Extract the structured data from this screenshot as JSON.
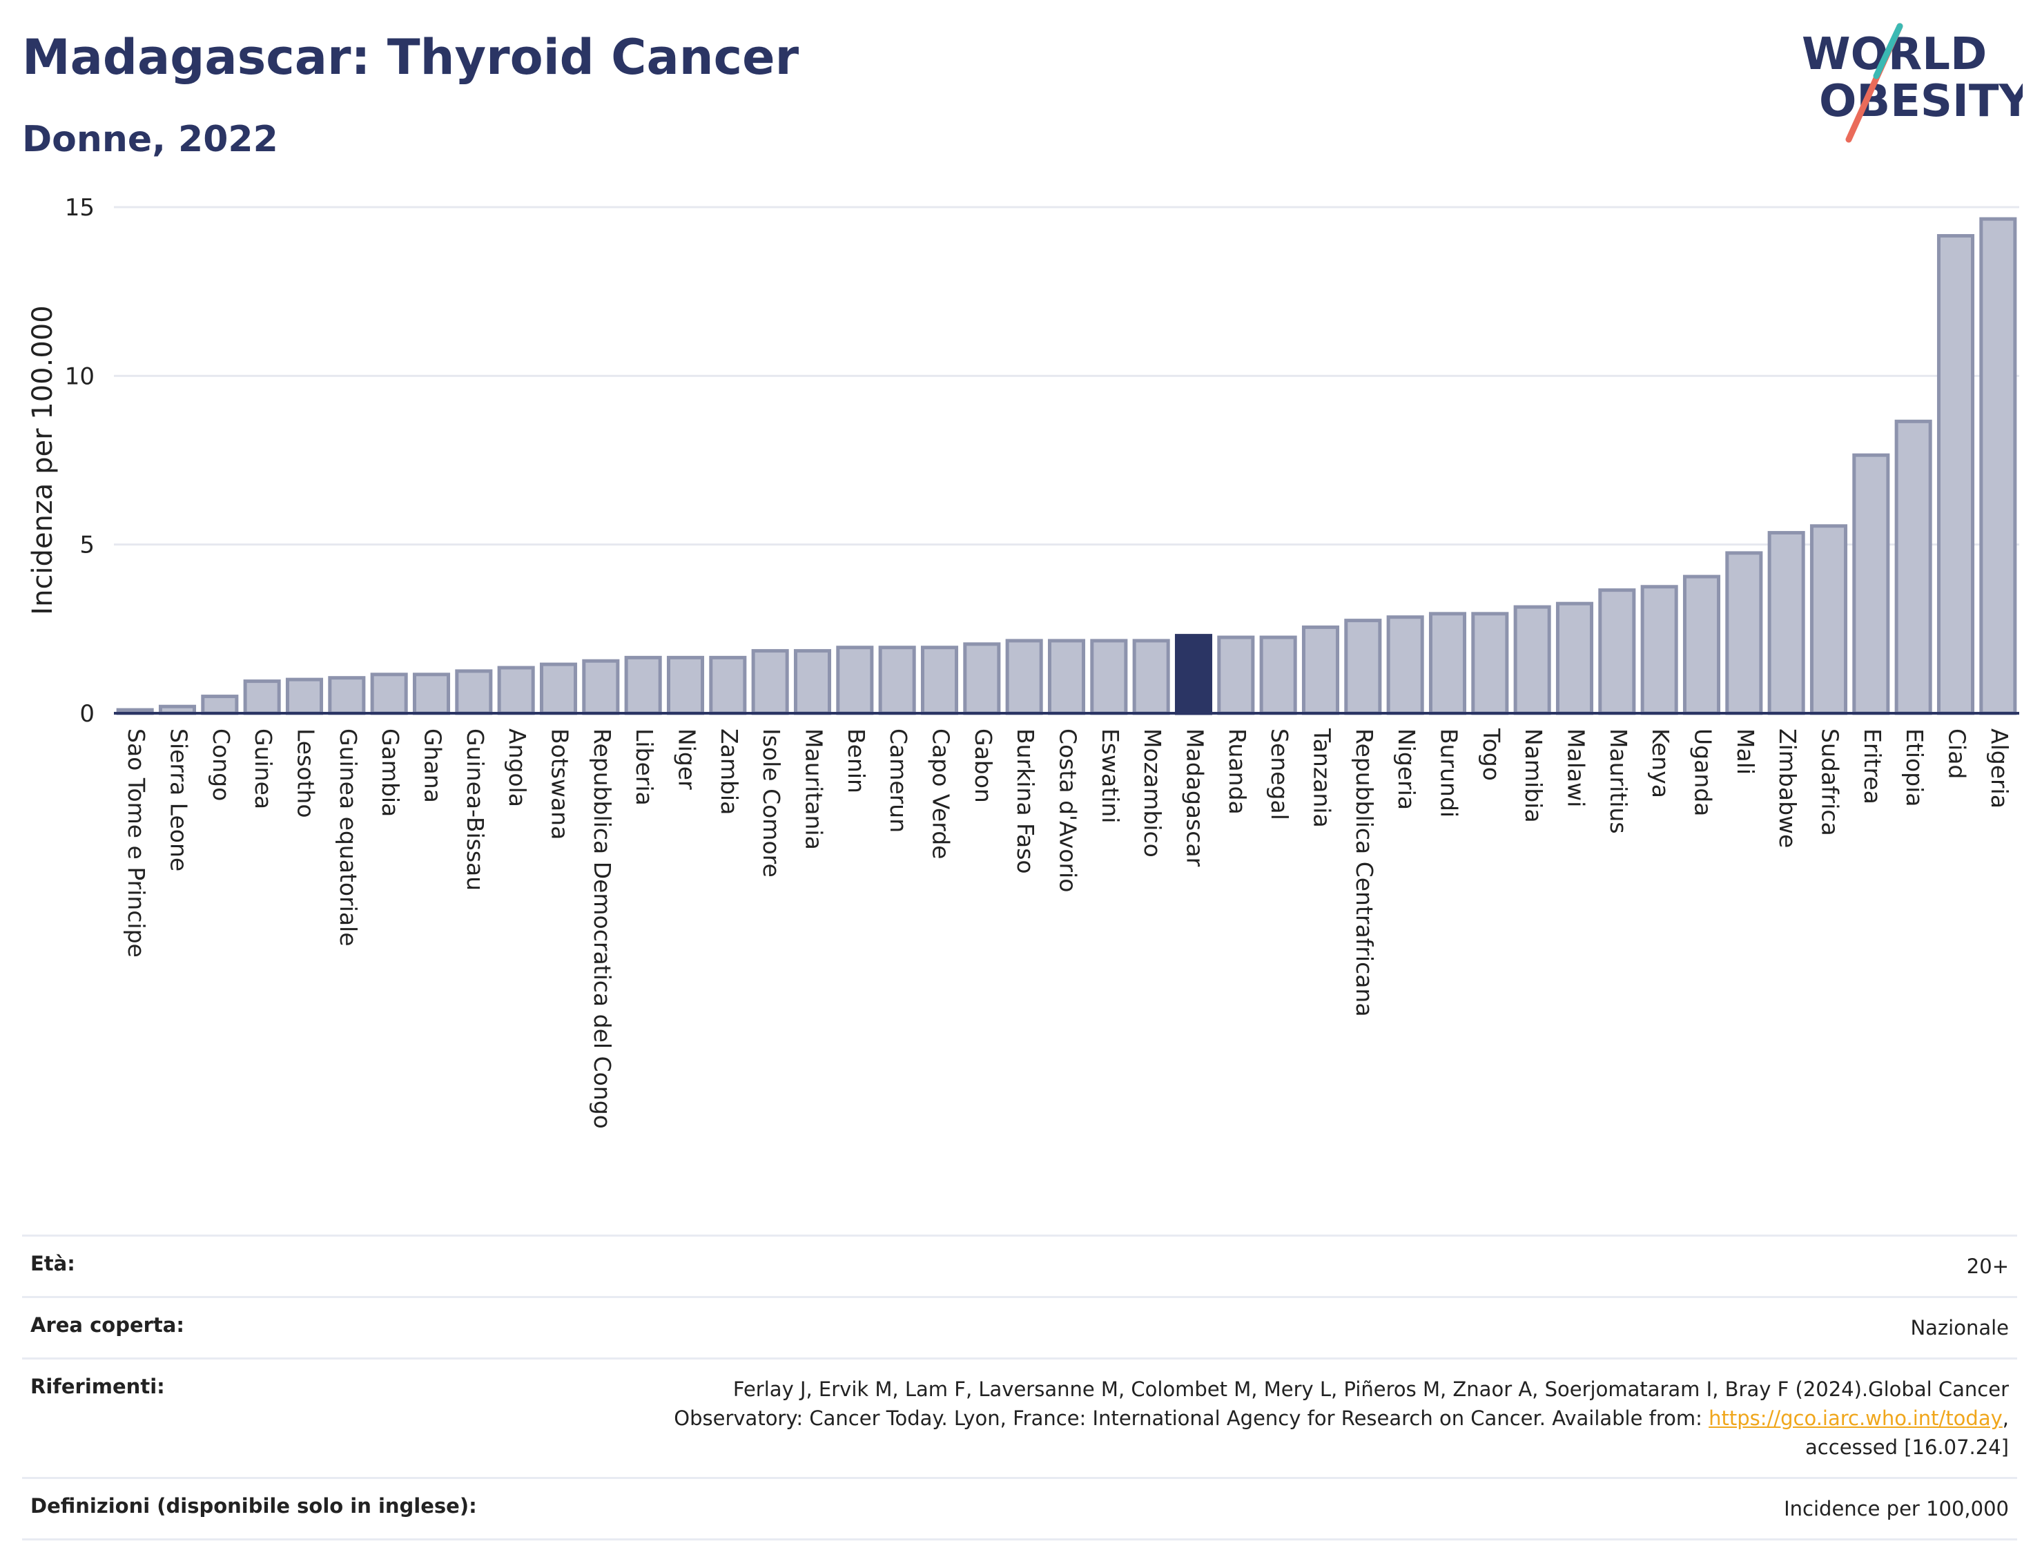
{
  "header": {
    "title": "Madagascar: Thyroid Cancer",
    "subtitle": "Donne, 2022"
  },
  "logo": {
    "line1": "WORLD",
    "line2": "OBESITY"
  },
  "chart_data": {
    "type": "bar",
    "ylabel": "Incidenza per 100.000",
    "xlabel": "",
    "ylim": [
      0,
      15
    ],
    "yticks": [
      0,
      5,
      10,
      15
    ],
    "grid": true,
    "highlight": "Madagascar",
    "colors": {
      "bar": "#bcc0d0",
      "bar_border": "#8d93ad",
      "highlight": "#2b3564",
      "grid": "#e6e8ef"
    },
    "categories": [
      "Sao Tome e Principe",
      "Sierra Leone",
      "Congo",
      "Guinea",
      "Lesotho",
      "Guinea equatoriale",
      "Gambia",
      "Ghana",
      "Guinea-Bissau",
      "Angola",
      "Botswana",
      "Repubblica Democratica del Congo",
      "Liberia",
      "Niger",
      "Zambia",
      "Isole Comore",
      "Mauritania",
      "Benin",
      "Camerun",
      "Capo Verde",
      "Gabon",
      "Burkina Faso",
      "Costa d'Avorio",
      "Eswatini",
      "Mozambico",
      "Madagascar",
      "Ruanda",
      "Senegal",
      "Tanzania",
      "Repubblica Centrafricana",
      "Nigeria",
      "Burundi",
      "Togo",
      "Namibia",
      "Malawi",
      "Mauritius",
      "Kenya",
      "Uganda",
      "Mali",
      "Zimbabwe",
      "Sudafrica",
      "Eritrea",
      "Etiopia",
      "Ciad",
      "Algeria"
    ],
    "values": [
      0.1,
      0.2,
      0.5,
      0.95,
      1.0,
      1.05,
      1.15,
      1.15,
      1.25,
      1.35,
      1.45,
      1.55,
      1.65,
      1.65,
      1.65,
      1.85,
      1.85,
      1.95,
      1.95,
      1.95,
      2.05,
      2.15,
      2.15,
      2.15,
      2.15,
      2.3,
      2.25,
      2.25,
      2.55,
      2.75,
      2.85,
      2.95,
      2.95,
      3.15,
      3.25,
      3.65,
      3.75,
      4.05,
      4.75,
      5.35,
      5.55,
      7.65,
      8.65,
      14.15,
      14.65
    ]
  },
  "meta": {
    "age_label": "Età:",
    "age_value": "20+",
    "area_label": "Area coperta:",
    "area_value": "Nazionale",
    "refs_label": "Riferimenti:",
    "refs_text": "Ferlay J, Ervik M, Lam F, Laversanne M, Colombet M, Mery L, Piñeros M, Znaor A, Soerjomataram I, Bray F (2024).Global Cancer Observatory: Cancer Today. Lyon, France: International Agency for Research on Cancer. Available from: ",
    "refs_link": "https://gco.iarc.who.int/today",
    "refs_tail": ", accessed [16.07.24]",
    "defs_label": "Definizioni (disponibile solo in inglese):",
    "defs_value": "Incidence per 100,000"
  }
}
